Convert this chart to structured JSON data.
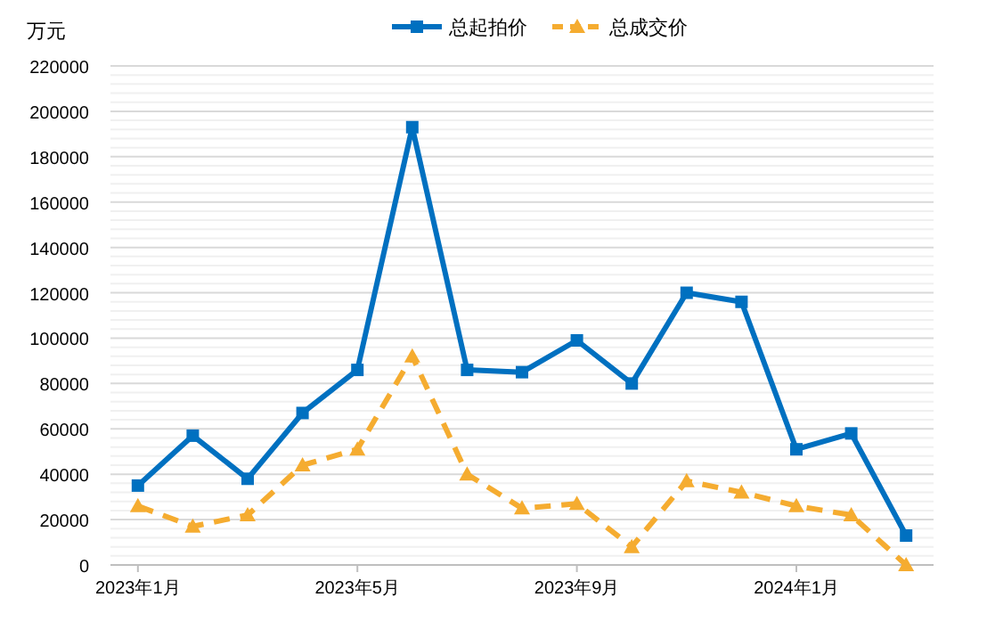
{
  "chart_data": {
    "type": "line",
    "ylabel": "万元",
    "categories": [
      "2023年1月",
      null,
      null,
      null,
      "2023年5月",
      null,
      null,
      null,
      "2023年9月",
      null,
      null,
      null,
      "2024年1月",
      null,
      null
    ],
    "series": [
      {
        "name": "总起拍价",
        "color": "#0070c0",
        "marker": "square",
        "line_style": "solid",
        "values": [
          35000,
          57000,
          38000,
          67000,
          86000,
          193000,
          86000,
          85000,
          99000,
          80000,
          120000,
          116000,
          51000,
          58000,
          13000
        ]
      },
      {
        "name": "总成交价",
        "color": "#f5ac30",
        "marker": "triangle",
        "line_style": "dashed",
        "values": [
          26000,
          17000,
          22000,
          44000,
          51000,
          92000,
          40000,
          25000,
          27000,
          8000,
          37000,
          32000,
          26000,
          22000,
          0
        ]
      }
    ],
    "ylim": [
      0,
      220000
    ],
    "yticks": [
      0,
      20000,
      40000,
      60000,
      80000,
      100000,
      120000,
      140000,
      160000,
      180000,
      200000,
      220000
    ],
    "grid": "y",
    "legend": "top"
  }
}
